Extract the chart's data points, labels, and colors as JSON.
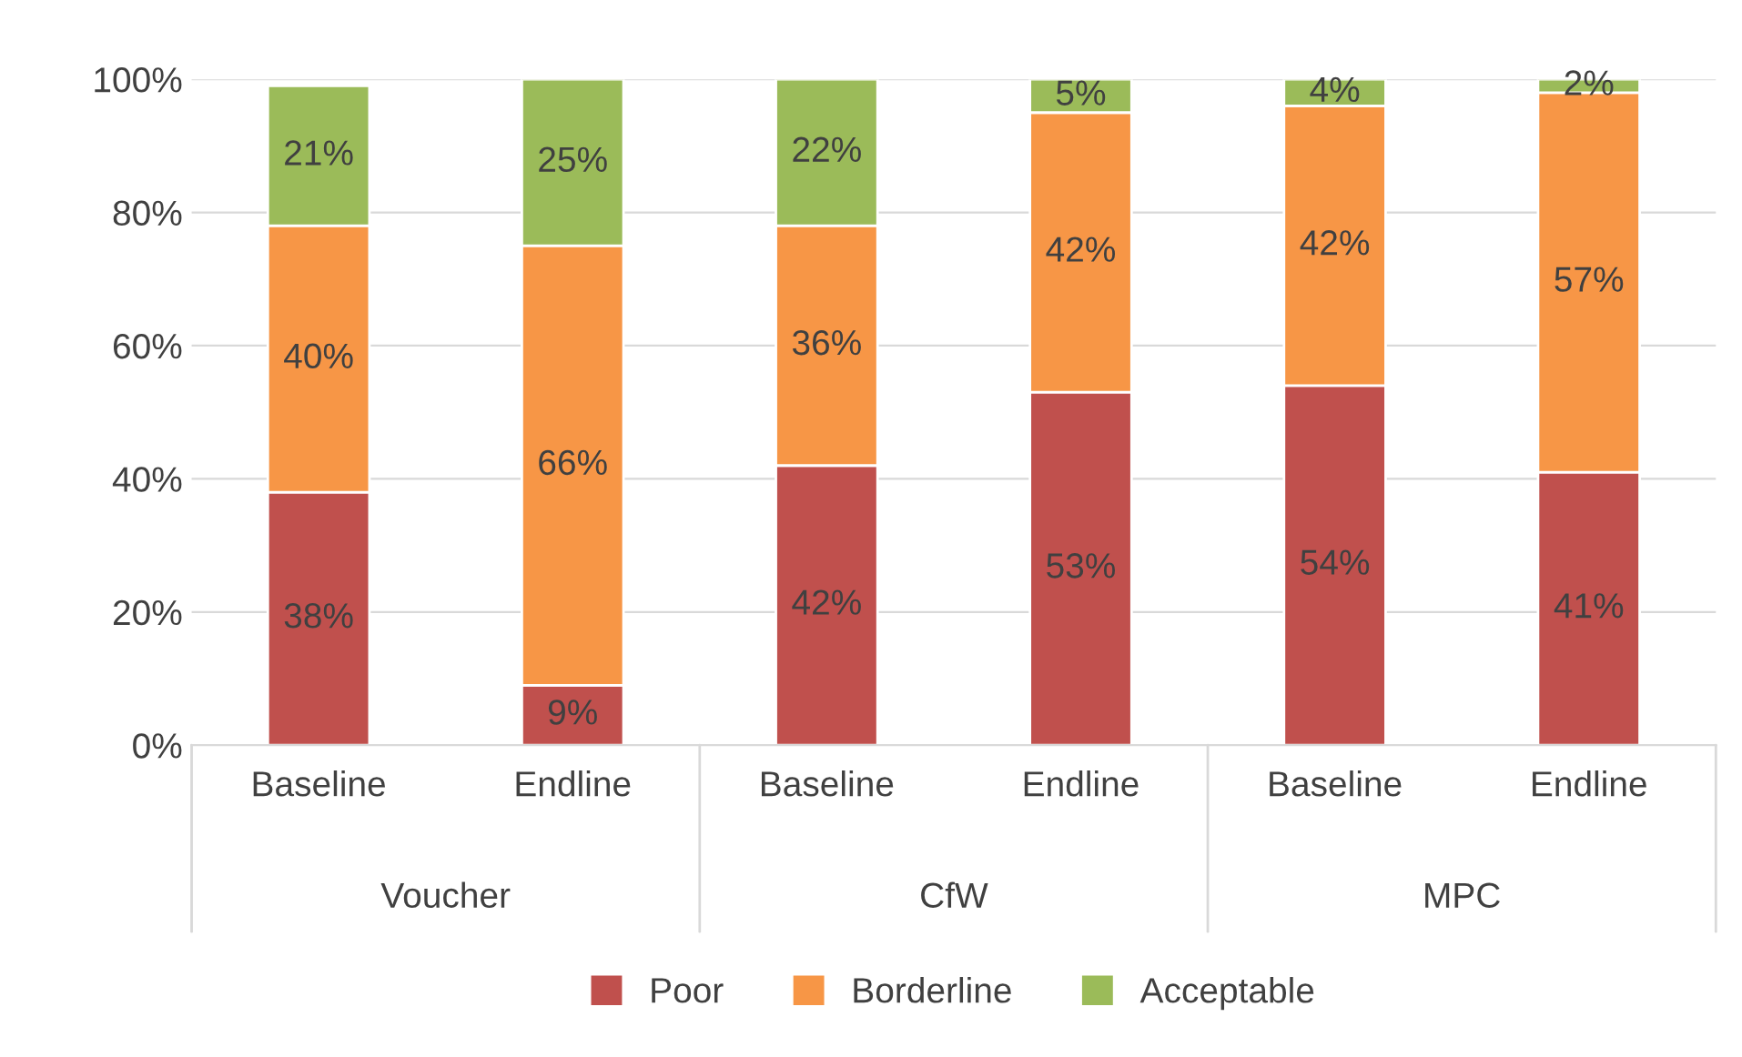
{
  "chart_data": {
    "type": "bar",
    "stacked": true,
    "categories": [
      "Baseline",
      "Endline",
      "Baseline",
      "Endline",
      "Baseline",
      "Endline"
    ],
    "annotations": [
      "Voucher",
      "CfW",
      "MPC"
    ],
    "series": [
      {
        "name": "Poor",
        "color": "#c0504d",
        "values": [
          38,
          9,
          42,
          53,
          54,
          41
        ],
        "value_labels": [
          "38%",
          "9%",
          "42%",
          "53%",
          "54%",
          "41%"
        ]
      },
      {
        "name": "Borderline",
        "color": "#f79646",
        "values": [
          40,
          66,
          36,
          42,
          42,
          57
        ],
        "value_labels": [
          "40%",
          "66%",
          "36%",
          "42%",
          "42%",
          "57%"
        ]
      },
      {
        "name": "Acceptable",
        "color": "#9bbb59",
        "values": [
          21,
          25,
          22,
          5,
          4,
          2
        ],
        "value_labels": [
          "21%",
          "25%",
          "22%",
          "5%",
          "4%",
          "2%"
        ]
      }
    ],
    "ylim": [
      0,
      100
    ],
    "yticks": [
      {
        "value": 0,
        "label": "0%"
      },
      {
        "value": 20,
        "label": "20%"
      },
      {
        "value": 40,
        "label": "40%"
      },
      {
        "value": 60,
        "label": "60%"
      },
      {
        "value": 80,
        "label": "80%"
      },
      {
        "value": 100,
        "label": "100%"
      }
    ],
    "grid": "y",
    "legend": "bottom"
  }
}
